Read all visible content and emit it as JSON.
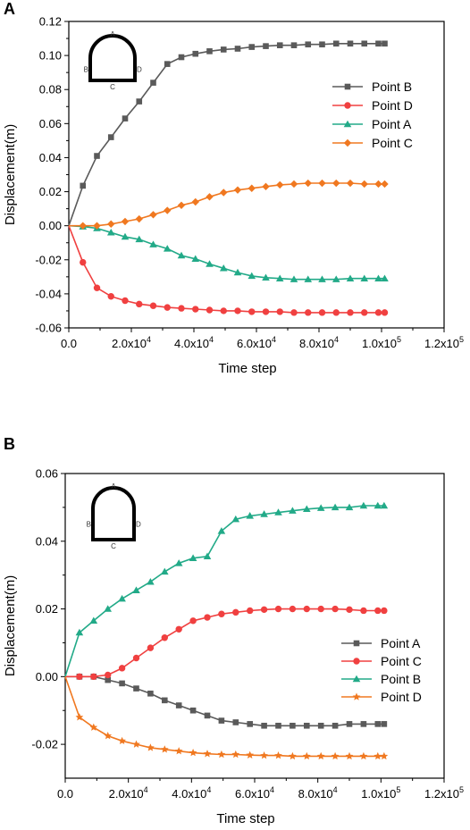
{
  "chart_data": [
    {
      "panel_label": "A",
      "type": "line",
      "xlabel": "Time step",
      "ylabel": "Displacement(m)",
      "xlim": [
        0,
        120000
      ],
      "ylim": [
        -0.06,
        0.12
      ],
      "xticks": [
        0,
        20000,
        40000,
        60000,
        80000,
        100000,
        120000
      ],
      "xtick_labels": [
        "0.0",
        "2.0x10",
        "4.0x10",
        "6.0x10",
        "8.0x10",
        "1.0x10",
        "1.2x10"
      ],
      "xtick_exps": [
        "",
        "4",
        "4",
        "4",
        "4",
        "5",
        "5"
      ],
      "yticks": [
        -0.06,
        -0.04,
        -0.02,
        0.0,
        0.02,
        0.04,
        0.06,
        0.08,
        0.1,
        0.12
      ],
      "ytick_labels": [
        "-0.06",
        "-0.04",
        "-0.02",
        "0.00",
        "0.02",
        "0.04",
        "0.06",
        "0.08",
        "0.10",
        "0.12"
      ],
      "legend_position": "right",
      "inset_labels": {
        "top": "A",
        "left": "B",
        "right": "D",
        "bottom": "C"
      },
      "series": [
        {
          "name": "Point B",
          "color": "#5a5a5a",
          "marker": "square",
          "x": [
            0,
            4500,
            9000,
            13500,
            18000,
            22500,
            27000,
            31500,
            36000,
            40500,
            45000,
            49500,
            54000,
            58500,
            63000,
            67500,
            72000,
            76500,
            81000,
            85500,
            90000,
            94500,
            99000,
            101000
          ],
          "y": [
            0.0,
            0.0235,
            0.041,
            0.052,
            0.063,
            0.073,
            0.084,
            0.095,
            0.099,
            0.101,
            0.1025,
            0.1035,
            0.104,
            0.105,
            0.1055,
            0.106,
            0.106,
            0.1065,
            0.1065,
            0.107,
            0.107,
            0.107,
            0.107,
            0.107
          ]
        },
        {
          "name": "Point D",
          "color": "#f04040",
          "marker": "circle",
          "x": [
            0,
            4500,
            9000,
            13500,
            18000,
            22500,
            27000,
            31500,
            36000,
            40500,
            45000,
            49500,
            54000,
            58500,
            63000,
            67500,
            72000,
            76500,
            81000,
            85500,
            90000,
            94500,
            99000,
            101000
          ],
          "y": [
            0.0,
            -0.0215,
            -0.0365,
            -0.0415,
            -0.044,
            -0.046,
            -0.047,
            -0.048,
            -0.0485,
            -0.049,
            -0.0495,
            -0.05,
            -0.05,
            -0.0505,
            -0.0505,
            -0.0505,
            -0.051,
            -0.051,
            -0.051,
            -0.051,
            -0.051,
            -0.051,
            -0.051,
            -0.051
          ]
        },
        {
          "name": "Point A",
          "color": "#22aa88",
          "marker": "triangle",
          "x": [
            0,
            4500,
            9000,
            13500,
            18000,
            22500,
            27000,
            31500,
            36000,
            40500,
            45000,
            49500,
            54000,
            58500,
            63000,
            67500,
            72000,
            76500,
            81000,
            85500,
            90000,
            94500,
            99000,
            101000
          ],
          "y": [
            0.0,
            -0.0005,
            -0.0015,
            -0.004,
            -0.0065,
            -0.008,
            -0.011,
            -0.0135,
            -0.0175,
            -0.0195,
            -0.0225,
            -0.025,
            -0.0275,
            -0.0295,
            -0.0305,
            -0.031,
            -0.0315,
            -0.0315,
            -0.0315,
            -0.0315,
            -0.031,
            -0.031,
            -0.031,
            -0.031
          ]
        },
        {
          "name": "Point C",
          "color": "#f07820",
          "marker": "diamond",
          "x": [
            0,
            4500,
            9000,
            13500,
            18000,
            22500,
            27000,
            31500,
            36000,
            40500,
            45000,
            49500,
            54000,
            58500,
            63000,
            67500,
            72000,
            76500,
            81000,
            85500,
            90000,
            94500,
            99000,
            101000
          ],
          "y": [
            0.0,
            0.0,
            0.0,
            0.001,
            0.0025,
            0.004,
            0.0065,
            0.009,
            0.012,
            0.014,
            0.017,
            0.0195,
            0.021,
            0.022,
            0.023,
            0.024,
            0.0245,
            0.025,
            0.025,
            0.025,
            0.025,
            0.0245,
            0.0245,
            0.0245
          ]
        }
      ]
    },
    {
      "panel_label": "B",
      "type": "line",
      "xlabel": "Time step",
      "ylabel": "Displacement(m)",
      "xlim": [
        0,
        120000
      ],
      "ylim": [
        -0.03,
        0.06
      ],
      "xticks": [
        0,
        20000,
        40000,
        60000,
        80000,
        100000,
        120000
      ],
      "xtick_labels": [
        "0.0",
        "2.0x10",
        "4.0x10",
        "6.0x10",
        "8.0x10",
        "1.0x10",
        "1.2x10"
      ],
      "xtick_exps": [
        "",
        "4",
        "4",
        "4",
        "4",
        "5",
        "5"
      ],
      "yticks": [
        -0.02,
        0.0,
        0.02,
        0.04,
        0.06
      ],
      "ytick_labels": [
        "-0.02",
        "0.00",
        "0.02",
        "0.04",
        "0.06"
      ],
      "legend_position": "bottom-right",
      "inset_labels": {
        "top": "A",
        "left": "B",
        "right": "D",
        "bottom": "C"
      },
      "series": [
        {
          "name": "Point A",
          "color": "#5a5a5a",
          "marker": "square",
          "x": [
            0,
            4500,
            9000,
            13500,
            18000,
            22500,
            27000,
            31500,
            36000,
            40500,
            45000,
            49500,
            54000,
            58500,
            63000,
            67500,
            72000,
            76500,
            81000,
            85500,
            90000,
            94500,
            99000,
            101000
          ],
          "y": [
            0.0,
            0.0,
            0.0,
            -0.001,
            -0.002,
            -0.0035,
            -0.005,
            -0.007,
            -0.0085,
            -0.01,
            -0.0115,
            -0.013,
            -0.0135,
            -0.014,
            -0.0145,
            -0.0145,
            -0.0145,
            -0.0145,
            -0.0145,
            -0.0145,
            -0.014,
            -0.014,
            -0.014,
            -0.014
          ]
        },
        {
          "name": "Point C",
          "color": "#f04040",
          "marker": "circle",
          "x": [
            0,
            4500,
            9000,
            13500,
            18000,
            22500,
            27000,
            31500,
            36000,
            40500,
            45000,
            49500,
            54000,
            58500,
            63000,
            67500,
            72000,
            76500,
            81000,
            85500,
            90000,
            94500,
            99000,
            101000
          ],
          "y": [
            0.0,
            0.0,
            0.0,
            0.0005,
            0.0025,
            0.0055,
            0.0085,
            0.0115,
            0.014,
            0.0165,
            0.0175,
            0.0185,
            0.019,
            0.0195,
            0.0198,
            0.02,
            0.02,
            0.02,
            0.02,
            0.02,
            0.0198,
            0.0195,
            0.0195,
            0.0195
          ]
        },
        {
          "name": "Point B",
          "color": "#22aa88",
          "marker": "triangle",
          "x": [
            0,
            4500,
            9000,
            13500,
            18000,
            22500,
            27000,
            31500,
            36000,
            40500,
            45000,
            49500,
            54000,
            58500,
            63000,
            67500,
            72000,
            76500,
            81000,
            85500,
            90000,
            94500,
            99000,
            101000
          ],
          "y": [
            0.0,
            0.013,
            0.0165,
            0.02,
            0.023,
            0.0255,
            0.028,
            0.031,
            0.0335,
            0.035,
            0.0355,
            0.043,
            0.0465,
            0.0475,
            0.048,
            0.0485,
            0.049,
            0.0495,
            0.0498,
            0.05,
            0.05,
            0.0505,
            0.0505,
            0.0505
          ]
        },
        {
          "name": "Point D",
          "color": "#f07820",
          "marker": "star",
          "x": [
            0,
            4500,
            9000,
            13500,
            18000,
            22500,
            27000,
            31500,
            36000,
            40500,
            45000,
            49500,
            54000,
            58500,
            63000,
            67500,
            72000,
            76500,
            81000,
            85500,
            90000,
            94500,
            99000,
            101000
          ],
          "y": [
            0.0,
            -0.012,
            -0.015,
            -0.0175,
            -0.019,
            -0.02,
            -0.021,
            -0.0215,
            -0.022,
            -0.0225,
            -0.0228,
            -0.023,
            -0.023,
            -0.0232,
            -0.0233,
            -0.0233,
            -0.0235,
            -0.0235,
            -0.0235,
            -0.0235,
            -0.0235,
            -0.0235,
            -0.0235,
            -0.0235
          ]
        }
      ]
    }
  ]
}
